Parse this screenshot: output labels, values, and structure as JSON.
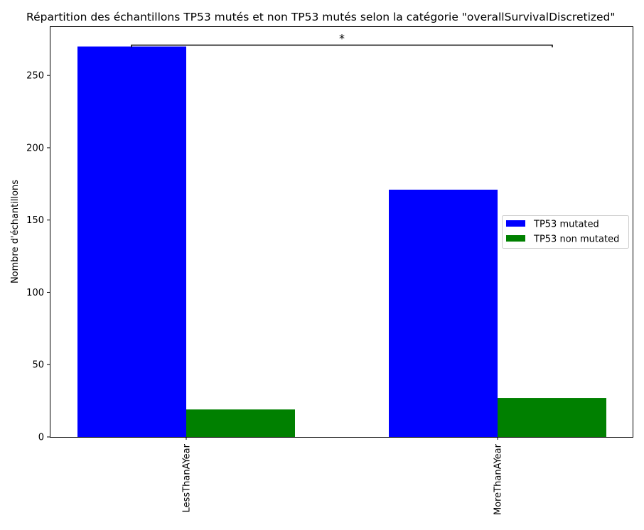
{
  "chart_data": {
    "type": "bar",
    "title": "Répartition des échantillons TP53 mutés et non TP53 mutés selon la catégorie \"overallSurvivalDiscretized\"",
    "xlabel": "",
    "ylabel": "Nombre d'échantillons",
    "categories": [
      "LessThanAYear",
      "MoreThanAYear"
    ],
    "series": [
      {
        "name": "TP53 mutated",
        "values": [
          270,
          171
        ],
        "color": "#0000ff"
      },
      {
        "name": "TP53 non mutated",
        "values": [
          19,
          27
        ],
        "color": "#008000"
      }
    ],
    "ylim": [
      0,
      284
    ],
    "yticks": [
      0,
      50,
      100,
      150,
      200,
      250
    ],
    "grid": false,
    "legend_position": "center-right",
    "annotation": {
      "text": "*",
      "between": [
        "LessThanAYear",
        "MoreThanAYear"
      ],
      "y": 271
    }
  }
}
